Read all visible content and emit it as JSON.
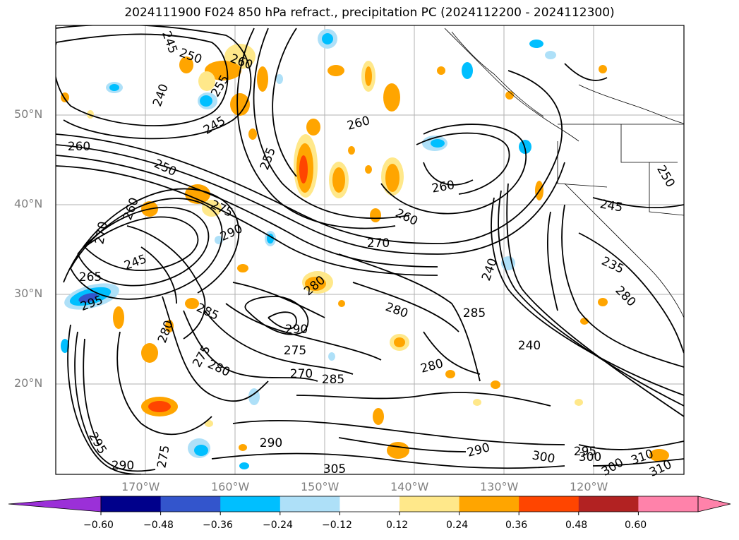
{
  "title": "2024111900 F024 850 hPa refract., precipitation PC (2024112200 - 2024112300)",
  "lat_labels": [
    "50°N",
    "40°N",
    "30°N",
    "20°N"
  ],
  "lon_labels": [
    "170°W",
    "160°W",
    "150°W",
    "140°W",
    "130°W",
    "120°W"
  ],
  "contour_labels": [
    "245",
    "240",
    "250",
    "255",
    "260",
    "245",
    "260",
    "250",
    "255",
    "260",
    "260",
    "275",
    "270",
    "265",
    "245",
    "290",
    "270",
    "260",
    "260",
    "250",
    "245",
    "235",
    "280",
    "280",
    "285",
    "280",
    "240",
    "285",
    "275",
    "290",
    "280",
    "275",
    "280",
    "270",
    "285",
    "280",
    "295",
    "290",
    "300",
    "295",
    "310",
    "305",
    "310",
    "300",
    "275",
    "295",
    "290",
    "290",
    "300",
    "240"
  ],
  "colorbar": {
    "colors": [
      "#9b30d8",
      "#00008b",
      "#3355cc",
      "#00bfff",
      "#aee0f8",
      "#ffffff",
      "#ffe88a",
      "#ffa500",
      "#ff4500",
      "#b22222",
      "#ff82aa",
      "#ff82aa"
    ],
    "ticks": [
      "−0.60",
      "−0.48",
      "−0.36",
      "−0.24",
      "−0.12",
      "0.12",
      "0.24",
      "0.36",
      "0.48",
      "0.60"
    ]
  }
}
